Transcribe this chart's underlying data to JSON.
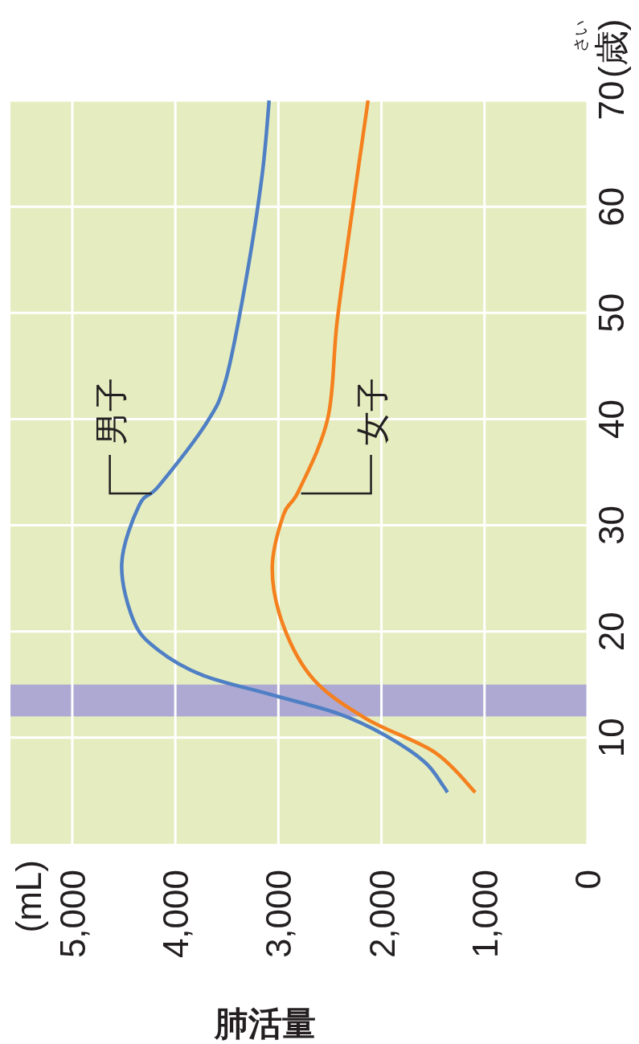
{
  "chart_data": {
    "type": "line",
    "xlabel": "肺活量",
    "ylabel": "(歳)",
    "xlim": [
      5600,
      0
    ],
    "xticks": [
      {
        "value": 5000,
        "label": "5,000"
      },
      {
        "value": 4000,
        "label": "4,000"
      },
      {
        "value": 3000,
        "label": "3,000"
      },
      {
        "value": 2000,
        "label": "2,000"
      },
      {
        "value": 1000,
        "label": "1,000"
      },
      {
        "value": 0,
        "label": "0"
      }
    ],
    "ylim": [
      0,
      70
    ],
    "yticks": [
      10,
      20,
      30,
      40,
      50,
      60,
      70
    ],
    "grid": true,
    "line_style": "solid",
    "bands": [
      {
        "axis": "y",
        "from": 12,
        "to": 15,
        "color": "#ada9d3"
      }
    ],
    "series": [
      {
        "color": "#4f7fc4",
        "x": [
          1360,
          1400,
          1580,
          1960,
          2430,
          3090,
          3740,
          4160,
          4400,
          4520,
          4350,
          4160,
          3700,
          3510,
          3320,
          3160,
          3090
        ],
        "values": [
          4.85,
          5.45,
          7.7,
          10.2,
          12.3,
          14.1,
          15.9,
          18.2,
          20.9,
          26.4,
          31.9,
          33.7,
          39.6,
          43.7,
          52.8,
          62.8,
          70
        ]
      },
      {
        "color": "#f5801e",
        "x": [
          1090,
          1480,
          2150,
          2660,
          2950,
          3060,
          2950,
          2800,
          2520,
          2430,
          2270,
          2130
        ],
        "values": [
          4.85,
          8.6,
          11.8,
          15.5,
          20.5,
          25.9,
          31,
          33.3,
          40.1,
          49.2,
          60.5,
          70
        ]
      }
    ],
    "annotations": [
      {
        "text": "男子",
        "x": 4230,
        "y": 33
      },
      {
        "text": "女子",
        "x": 2780,
        "y": 33
      },
      "(mL)",
      "さい"
    ]
  }
}
